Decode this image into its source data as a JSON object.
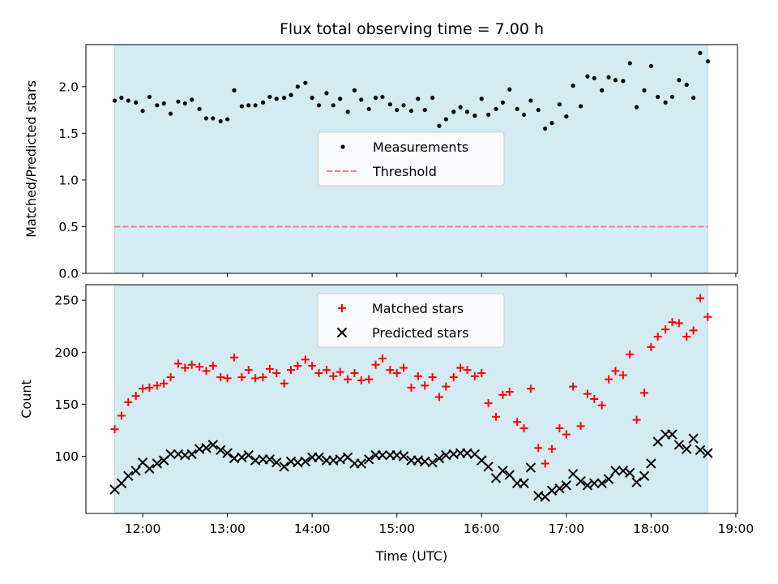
{
  "chart_data": [
    {
      "type": "scatter",
      "title": "Flux total observing time = 7.00 h",
      "xlabel": "",
      "ylabel": "Matched/Predicted stars",
      "xlim": [
        11.33,
        19.02
      ],
      "ylim": [
        0,
        2.45
      ],
      "grid": false,
      "legend_position": "center",
      "xtick_labels": [],
      "yticks": [
        0.0,
        0.5,
        1.0,
        1.5,
        2.0
      ],
      "ytick_labels": [
        "0.0",
        "0.5",
        "1.0",
        "1.5",
        "2.0"
      ],
      "shaded_span": [
        11.67,
        18.67
      ],
      "threshold": 0.5,
      "colors": {
        "span": "#d4ebf1",
        "measurements": "#000000",
        "threshold": "#ff7f7f"
      },
      "series": [
        {
          "name": "Measurements",
          "x": [
            11.67,
            11.75,
            11.83,
            11.92,
            12.0,
            12.08,
            12.17,
            12.25,
            12.33,
            12.42,
            12.5,
            12.58,
            12.67,
            12.75,
            12.83,
            12.92,
            13.0,
            13.08,
            13.17,
            13.25,
            13.33,
            13.42,
            13.5,
            13.58,
            13.67,
            13.75,
            13.83,
            13.92,
            14.0,
            14.08,
            14.17,
            14.25,
            14.33,
            14.42,
            14.5,
            14.58,
            14.67,
            14.75,
            14.83,
            14.92,
            15.0,
            15.08,
            15.17,
            15.25,
            15.33,
            15.42,
            15.5,
            15.58,
            15.67,
            15.75,
            15.83,
            15.92,
            16.0,
            16.08,
            16.17,
            16.25,
            16.33,
            16.42,
            16.5,
            16.58,
            16.67,
            16.75,
            16.83,
            16.92,
            17.0,
            17.08,
            17.17,
            17.25,
            17.33,
            17.42,
            17.5,
            17.58,
            17.67,
            17.75,
            17.83,
            17.92,
            18.0,
            18.08,
            18.17,
            18.25,
            18.33,
            18.42,
            18.5,
            18.58,
            18.67
          ],
          "values": [
            1.85,
            1.88,
            1.85,
            1.83,
            1.74,
            1.89,
            1.8,
            1.82,
            1.71,
            1.84,
            1.82,
            1.86,
            1.76,
            1.66,
            1.66,
            1.63,
            1.65,
            1.96,
            1.79,
            1.8,
            1.8,
            1.83,
            1.89,
            1.87,
            1.88,
            1.91,
            2.0,
            2.04,
            1.88,
            1.8,
            1.93,
            1.8,
            1.87,
            1.73,
            1.96,
            1.86,
            1.76,
            1.88,
            1.89,
            1.81,
            1.75,
            1.8,
            1.74,
            1.87,
            1.75,
            1.88,
            1.58,
            1.65,
            1.73,
            1.78,
            1.73,
            1.69,
            1.87,
            1.7,
            1.76,
            1.83,
            1.97,
            1.76,
            1.7,
            1.85,
            1.75,
            1.55,
            1.61,
            1.81,
            1.68,
            2.01,
            1.79,
            2.11,
            2.09,
            1.96,
            2.1,
            2.07,
            2.06,
            2.25,
            1.78,
            1.96,
            2.22,
            1.89,
            1.83,
            1.89,
            2.07,
            2.02,
            1.88,
            2.36,
            2.27
          ]
        },
        {
          "name": "Threshold",
          "x": [
            11.67,
            18.67
          ],
          "values": [
            0.5,
            0.5
          ]
        }
      ]
    },
    {
      "type": "scatter",
      "title": "",
      "xlabel": "Time (UTC)",
      "ylabel": "Count",
      "xlim": [
        11.33,
        19.02
      ],
      "ylim": [
        45,
        265
      ],
      "grid": false,
      "legend_position": "top-center",
      "xticks": [
        12,
        13,
        14,
        15,
        16,
        17,
        18,
        19
      ],
      "xtick_labels": [
        "12:00",
        "13:00",
        "14:00",
        "15:00",
        "16:00",
        "17:00",
        "18:00",
        "19:00"
      ],
      "yticks": [
        100,
        150,
        200,
        250
      ],
      "ytick_labels": [
        "100",
        "150",
        "200",
        "250"
      ],
      "shaded_span": [
        11.67,
        18.67
      ],
      "colors": {
        "span": "#d4ebf1",
        "matched": "#ff0000",
        "predicted": "#000000"
      },
      "series": [
        {
          "name": "Matched stars",
          "x": [
            11.67,
            11.75,
            11.83,
            11.92,
            12.0,
            12.08,
            12.17,
            12.25,
            12.33,
            12.42,
            12.5,
            12.58,
            12.67,
            12.75,
            12.83,
            12.92,
            13.0,
            13.08,
            13.17,
            13.25,
            13.33,
            13.42,
            13.5,
            13.58,
            13.67,
            13.75,
            13.83,
            13.92,
            14.0,
            14.08,
            14.17,
            14.25,
            14.33,
            14.42,
            14.5,
            14.58,
            14.67,
            14.75,
            14.83,
            14.92,
            15.0,
            15.08,
            15.17,
            15.25,
            15.33,
            15.42,
            15.5,
            15.58,
            15.67,
            15.75,
            15.83,
            15.92,
            16.0,
            16.08,
            16.17,
            16.25,
            16.33,
            16.42,
            16.5,
            16.58,
            16.67,
            16.75,
            16.83,
            16.92,
            17.0,
            17.08,
            17.17,
            17.25,
            17.33,
            17.42,
            17.5,
            17.58,
            17.67,
            17.75,
            17.83,
            17.92,
            18.0,
            18.08,
            18.17,
            18.25,
            18.33,
            18.42,
            18.5,
            18.58,
            18.67
          ],
          "values": [
            126,
            139,
            152,
            158,
            165,
            166,
            168,
            170,
            176,
            189,
            185,
            188,
            186,
            182,
            187,
            176,
            175,
            195,
            176,
            183,
            175,
            176,
            184,
            180,
            170,
            183,
            187,
            193,
            187,
            180,
            183,
            177,
            181,
            174,
            180,
            173,
            174,
            188,
            194,
            183,
            180,
            185,
            166,
            177,
            168,
            176,
            157,
            167,
            176,
            185,
            183,
            177,
            180,
            151,
            138,
            159,
            162,
            133,
            127,
            165,
            108,
            93,
            107,
            127,
            121,
            167,
            129,
            160,
            155,
            149,
            174,
            182,
            178,
            198,
            135,
            161,
            205,
            215,
            222,
            229,
            228,
            215,
            221,
            252,
            234
          ]
        },
        {
          "name": "Predicted stars",
          "x": [
            11.67,
            11.75,
            11.83,
            11.92,
            12.0,
            12.08,
            12.17,
            12.25,
            12.33,
            12.42,
            12.5,
            12.58,
            12.67,
            12.75,
            12.83,
            12.92,
            13.0,
            13.08,
            13.17,
            13.25,
            13.33,
            13.42,
            13.5,
            13.58,
            13.67,
            13.75,
            13.83,
            13.92,
            14.0,
            14.08,
            14.17,
            14.25,
            14.33,
            14.42,
            14.5,
            14.58,
            14.67,
            14.75,
            14.83,
            14.92,
            15.0,
            15.08,
            15.17,
            15.25,
            15.33,
            15.42,
            15.5,
            15.58,
            15.67,
            15.75,
            15.83,
            15.92,
            16.0,
            16.08,
            16.17,
            16.25,
            16.33,
            16.42,
            16.5,
            16.58,
            16.67,
            16.75,
            16.83,
            16.92,
            17.0,
            17.08,
            17.17,
            17.25,
            17.33,
            17.42,
            17.5,
            17.58,
            17.67,
            17.75,
            17.83,
            17.92,
            18.0,
            18.08,
            18.17,
            18.25,
            18.33,
            18.42,
            18.5,
            18.58,
            18.67
          ],
          "values": [
            68,
            74,
            81,
            86,
            94,
            88,
            93,
            96,
            102,
            102,
            101,
            102,
            107,
            108,
            111,
            106,
            103,
            98,
            99,
            101,
            96,
            97,
            97,
            94,
            90,
            95,
            94,
            95,
            99,
            99,
            96,
            96,
            97,
            99,
            93,
            93,
            97,
            101,
            101,
            101,
            101,
            100,
            96,
            96,
            95,
            94,
            98,
            101,
            102,
            103,
            103,
            102,
            96,
            90,
            79,
            86,
            82,
            74,
            74,
            89,
            62,
            61,
            67,
            69,
            72,
            83,
            76,
            72,
            74,
            74,
            78,
            86,
            86,
            84,
            75,
            81,
            93,
            114,
            121,
            121,
            111,
            107,
            117,
            106,
            103
          ]
        }
      ]
    }
  ]
}
